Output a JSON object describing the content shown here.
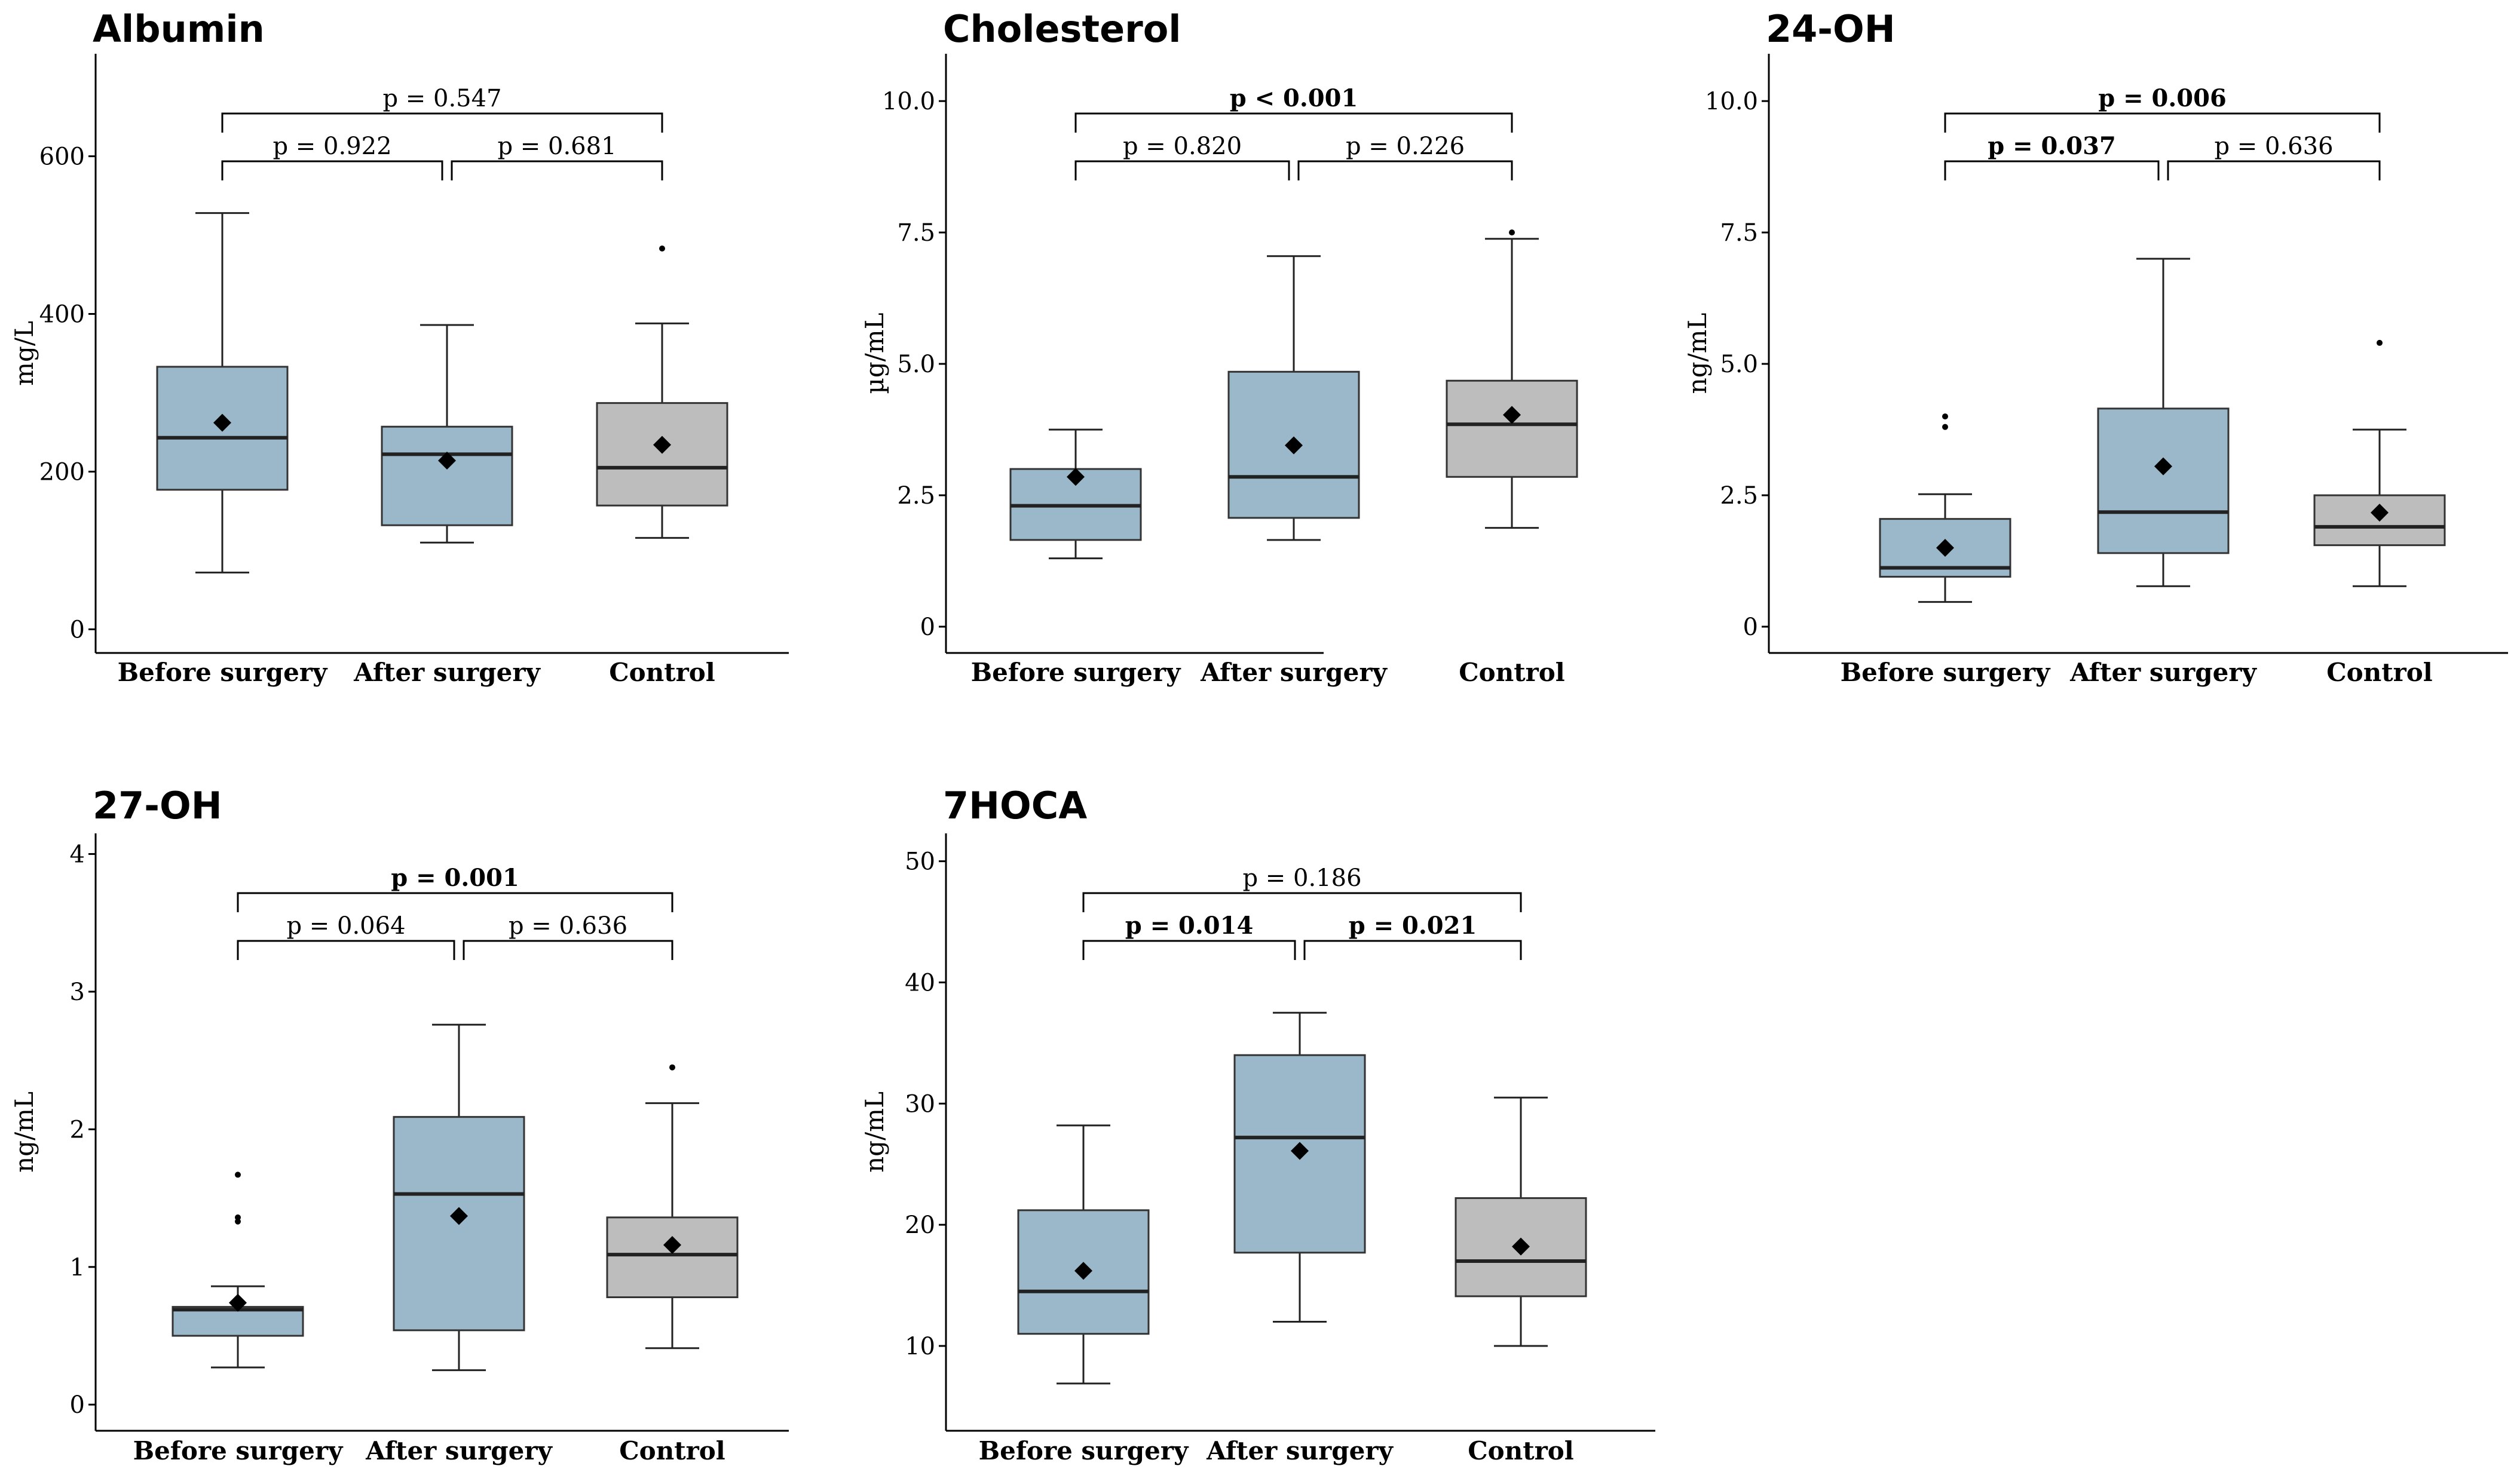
{
  "colors": {
    "surgery_box": "#9bb8ca",
    "control_box": "#bdbdbd"
  },
  "chart_data": [
    {
      "type": "box",
      "title": "Albumin",
      "ylabel": "mg/L",
      "ylim": [
        -30,
        730
      ],
      "yticks": [
        0,
        200,
        400,
        600
      ],
      "categories": [
        "Before surgery",
        "After surgery",
        "Control"
      ],
      "boxes": [
        {
          "min": 72,
          "q1": 177,
          "median": 243,
          "q3": 333,
          "max": 528,
          "mean": 262,
          "outliers": []
        },
        {
          "min": 110,
          "q1": 132,
          "median": 222,
          "q3": 257,
          "max": 386,
          "mean": 214,
          "outliers": []
        },
        {
          "min": 116,
          "q1": 157,
          "median": 205,
          "q3": 287,
          "max": 388,
          "mean": 234,
          "outliers": [
            483
          ]
        }
      ],
      "comparisons": [
        {
          "from": 0,
          "to": 1,
          "level": 0,
          "label": "p = 0.922",
          "significant": false
        },
        {
          "from": 1,
          "to": 2,
          "level": 0,
          "label": "p = 0.681",
          "significant": false
        },
        {
          "from": 0,
          "to": 2,
          "level": 1,
          "label": "p = 0.547",
          "significant": false
        }
      ]
    },
    {
      "type": "box",
      "title": "Cholesterol",
      "ylabel": "µg/mL",
      "ylim": [
        -0.5,
        10.9
      ],
      "yticks": [
        0,
        2.5,
        5.0,
        7.5,
        10
      ],
      "ytick_labels": [
        "0",
        "2.5",
        "5.0",
        "7.5",
        "10.0"
      ],
      "categories": [
        "Before surgery",
        "After surgery",
        "Control"
      ],
      "boxes": [
        {
          "min": 1.3,
          "q1": 1.65,
          "median": 2.3,
          "q3": 3.0,
          "max": 3.75,
          "mean": 2.85,
          "outliers": []
        },
        {
          "min": 1.65,
          "q1": 2.07,
          "median": 2.85,
          "q3": 4.85,
          "max": 7.05,
          "mean": 3.45,
          "outliers": []
        },
        {
          "min": 1.88,
          "q1": 2.85,
          "median": 3.85,
          "q3": 4.68,
          "max": 7.38,
          "mean": 4.03,
          "outliers": [
            7.5
          ]
        }
      ],
      "comparisons": [
        {
          "from": 0,
          "to": 1,
          "level": 0,
          "label": "p = 0.820",
          "significant": false
        },
        {
          "from": 1,
          "to": 2,
          "level": 0,
          "label": "p = 0.226",
          "significant": false
        },
        {
          "from": 0,
          "to": 2,
          "level": 1,
          "label": "p < 0.001",
          "significant": true
        }
      ]
    },
    {
      "type": "box",
      "title": "24-OH",
      "ylabel": "ng/mL",
      "ylim": [
        -0.5,
        10.9
      ],
      "yticks": [
        0,
        2.5,
        5.0,
        7.5,
        10
      ],
      "ytick_labels": [
        "0",
        "2.5",
        "5.0",
        "7.5",
        "10.0"
      ],
      "categories": [
        "Before surgery",
        "After surgery",
        "Control"
      ],
      "boxes": [
        {
          "min": 0.47,
          "q1": 0.95,
          "median": 1.12,
          "q3": 2.05,
          "max": 2.52,
          "mean": 1.5,
          "outliers": [
            3.8,
            4.0
          ]
        },
        {
          "min": 0.77,
          "q1": 1.4,
          "median": 2.18,
          "q3": 4.15,
          "max": 7.0,
          "mean": 3.05,
          "outliers": []
        },
        {
          "min": 0.77,
          "q1": 1.55,
          "median": 1.9,
          "q3": 2.5,
          "max": 3.75,
          "mean": 2.17,
          "outliers": [
            5.4
          ]
        }
      ],
      "comparisons": [
        {
          "from": 0,
          "to": 1,
          "level": 0,
          "label": "p = 0.037",
          "significant": true
        },
        {
          "from": 1,
          "to": 2,
          "level": 0,
          "label": "p = 0.636",
          "significant": false
        },
        {
          "from": 0,
          "to": 2,
          "level": 1,
          "label": "p = 0.006",
          "significant": true
        }
      ]
    },
    {
      "type": "box",
      "title": "27-OH",
      "ylabel": "ng/mL",
      "ylim": [
        -0.19,
        4.15
      ],
      "yticks": [
        0,
        1,
        2,
        3,
        4
      ],
      "categories": [
        "Before surgery",
        "After surgery",
        "Control"
      ],
      "boxes": [
        {
          "min": 0.27,
          "q1": 0.5,
          "median": 0.69,
          "q3": 0.71,
          "max": 0.86,
          "mean": 0.74,
          "outliers": [
            1.33,
            1.36,
            1.67
          ]
        },
        {
          "min": 0.25,
          "q1": 0.54,
          "median": 1.53,
          "q3": 2.09,
          "max": 2.76,
          "mean": 1.37,
          "outliers": []
        },
        {
          "min": 0.41,
          "q1": 0.78,
          "median": 1.09,
          "q3": 1.36,
          "max": 2.19,
          "mean": 1.16,
          "outliers": [
            2.45
          ]
        }
      ],
      "comparisons": [
        {
          "from": 0,
          "to": 1,
          "level": 0,
          "label": "p = 0.064",
          "significant": false
        },
        {
          "from": 1,
          "to": 2,
          "level": 0,
          "label": "p = 0.636",
          "significant": false
        },
        {
          "from": 0,
          "to": 2,
          "level": 1,
          "label": "p = 0.001",
          "significant": true
        }
      ]
    },
    {
      "type": "box",
      "title": "7HOCA",
      "ylabel": "ng/mL",
      "ylim": [
        3.0,
        52.3
      ],
      "yticks": [
        10,
        20,
        30,
        40,
        50
      ],
      "categories": [
        "Before surgery",
        "After surgery",
        "Control"
      ],
      "boxes": [
        {
          "min": 6.9,
          "q1": 11.0,
          "median": 14.5,
          "q3": 21.2,
          "max": 28.2,
          "mean": 16.2,
          "outliers": []
        },
        {
          "min": 12.0,
          "q1": 17.7,
          "median": 27.2,
          "q3": 34.0,
          "max": 37.5,
          "mean": 26.1,
          "outliers": []
        },
        {
          "min": 10.0,
          "q1": 14.1,
          "median": 17.0,
          "q3": 22.2,
          "max": 30.5,
          "mean": 18.2,
          "outliers": []
        }
      ],
      "comparisons": [
        {
          "from": 0,
          "to": 1,
          "level": 0,
          "label": "p = 0.014",
          "significant": true
        },
        {
          "from": 1,
          "to": 2,
          "level": 0,
          "label": "p = 0.021",
          "significant": true
        },
        {
          "from": 0,
          "to": 2,
          "level": 1,
          "label": "p = 0.186",
          "significant": false
        }
      ]
    }
  ]
}
